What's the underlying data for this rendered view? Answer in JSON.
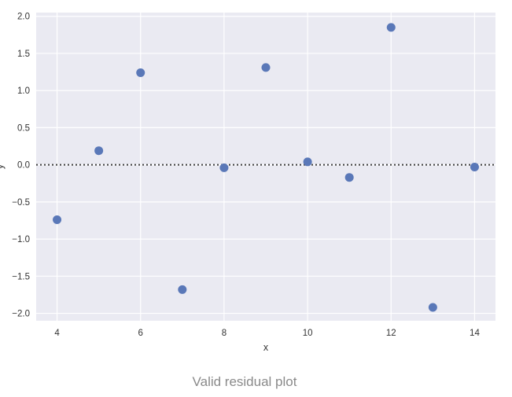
{
  "caption": "Valid residual plot",
  "colors": {
    "background": "#eaeaf2",
    "grid": "#ffffff",
    "point": "#5a78b8",
    "reference_line": "#3d3d3d"
  },
  "chart_data": {
    "type": "scatter",
    "title": "",
    "xlabel": "x",
    "ylabel": "y",
    "xlim": [
      3.5,
      14.5
    ],
    "ylim": [
      -2.1,
      2.05
    ],
    "xticks": [
      4,
      6,
      8,
      10,
      12,
      14
    ],
    "xtick_labels": [
      "4",
      "6",
      "8",
      "10",
      "12",
      "14"
    ],
    "yticks": [
      2.0,
      1.5,
      1.0,
      0.5,
      0.0,
      -0.5,
      -1.0,
      -1.5,
      -2.0
    ],
    "ytick_labels": [
      "2.0",
      "1.5",
      "1.0",
      "0.5",
      "0.0",
      "−0.5",
      "−1.0",
      "−1.5",
      "−2.0"
    ],
    "grid": true,
    "reference_line": {
      "y": 0,
      "style": "dotted"
    },
    "series": [
      {
        "x": [
          4,
          5,
          6,
          7,
          8,
          9,
          10,
          11,
          12,
          13,
          14
        ],
        "y": [
          -0.74,
          0.19,
          1.24,
          -1.68,
          -0.04,
          1.31,
          0.04,
          -0.17,
          1.85,
          -1.92,
          -0.03
        ]
      }
    ]
  }
}
